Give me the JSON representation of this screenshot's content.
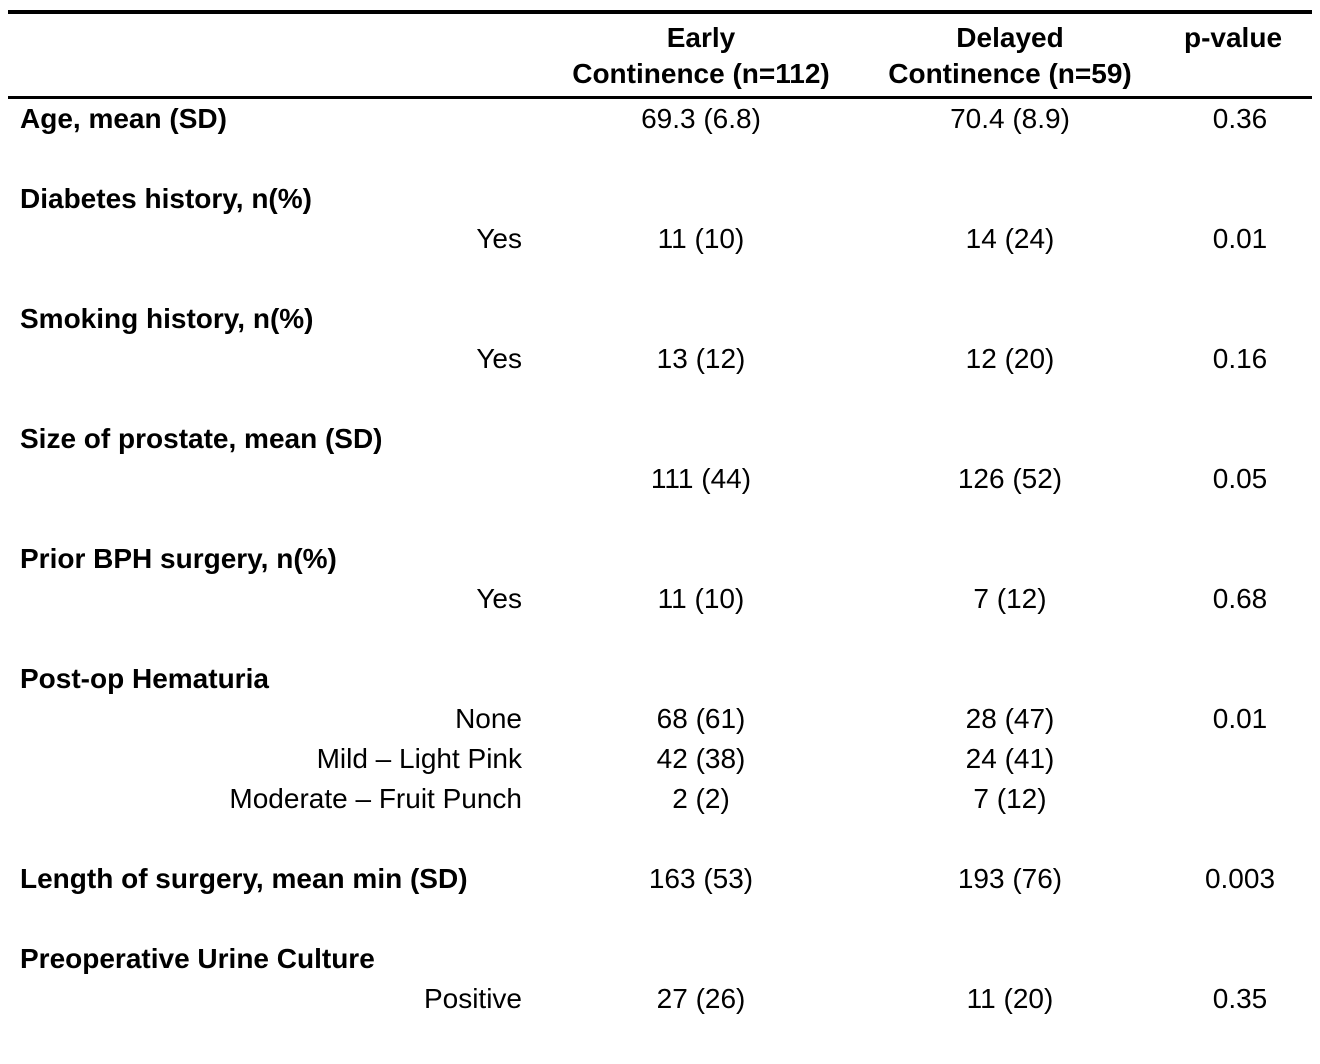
{
  "table": {
    "header": {
      "col1": "",
      "early_line1": "Early",
      "early_line2": "Continence (n=112)",
      "delayed_line1": "Delayed",
      "delayed_line2": "Continence (n=59)",
      "p_value": "p-value"
    },
    "rows": [
      {
        "kind": "inline",
        "label": "Age, mean (SD)",
        "early": "69.3 (6.8)",
        "delayed": "70.4 (8.9)",
        "p": "0.36"
      },
      {
        "kind": "spacer"
      },
      {
        "kind": "section",
        "label": "Diabetes history, n(%)"
      },
      {
        "kind": "sub",
        "sub": "Yes",
        "early": "11 (10)",
        "delayed": "14 (24)",
        "p": "0.01"
      },
      {
        "kind": "spacer"
      },
      {
        "kind": "section",
        "label": "Smoking history, n(%)"
      },
      {
        "kind": "sub",
        "sub": "Yes",
        "early": "13 (12)",
        "delayed": "12 (20)",
        "p": "0.16"
      },
      {
        "kind": "spacer"
      },
      {
        "kind": "section",
        "label": "Size of prostate, mean (SD)"
      },
      {
        "kind": "sub",
        "sub": "",
        "early": "111 (44)",
        "delayed": "126 (52)",
        "p": "0.05"
      },
      {
        "kind": "spacer"
      },
      {
        "kind": "section",
        "label": "Prior BPH surgery, n(%)"
      },
      {
        "kind": "sub",
        "sub": "Yes",
        "early": "11 (10)",
        "delayed": "7 (12)",
        "p": "0.68"
      },
      {
        "kind": "spacer"
      },
      {
        "kind": "section",
        "label": "Post-op Hematuria"
      },
      {
        "kind": "sub",
        "sub": "None",
        "early": "68 (61)",
        "delayed": "28 (47)",
        "p": "0.01"
      },
      {
        "kind": "sub",
        "sub": "Mild – Light Pink",
        "early": "42 (38)",
        "delayed": "24 (41)",
        "p": ""
      },
      {
        "kind": "sub",
        "sub": "Moderate – Fruit Punch",
        "early": "2 (2)",
        "delayed": "7 (12)",
        "p": ""
      },
      {
        "kind": "spacer"
      },
      {
        "kind": "inline",
        "label": "Length of surgery, mean min (SD)",
        "early": "163 (53)",
        "delayed": "193 (76)",
        "p": "0.003"
      },
      {
        "kind": "spacer"
      },
      {
        "kind": "section",
        "label": "Preoperative Urine Culture"
      },
      {
        "kind": "sub",
        "sub": "Positive",
        "early": "27 (26)",
        "delayed": "11 (20)",
        "p": "0.35"
      }
    ]
  }
}
